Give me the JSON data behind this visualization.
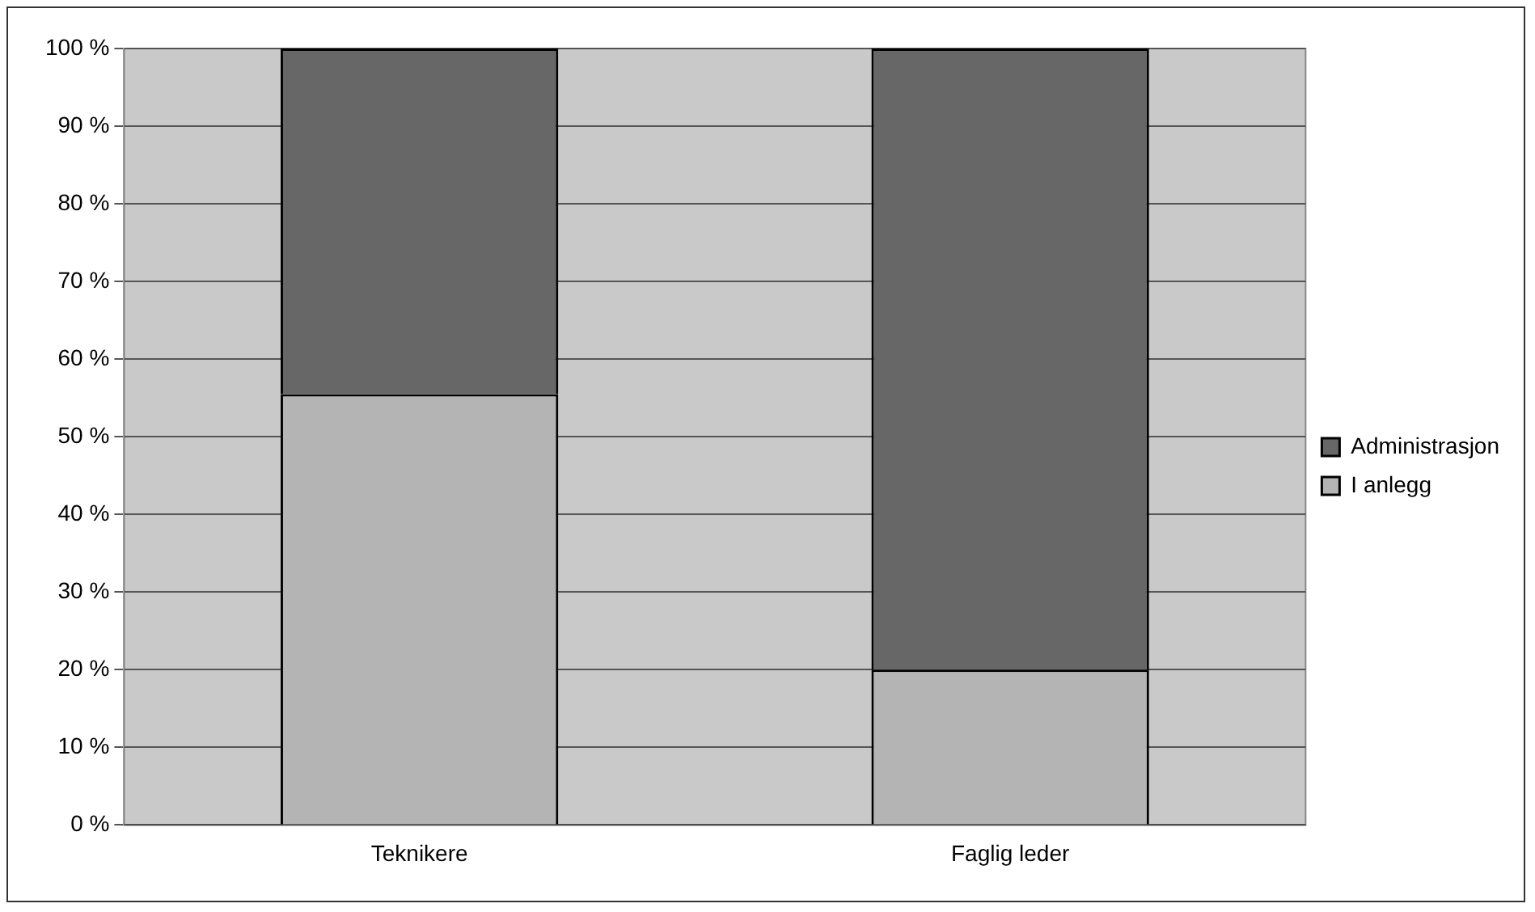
{
  "chart_data": {
    "type": "bar",
    "stacked": true,
    "categories": [
      "Teknikere",
      "Faglig leder"
    ],
    "series": [
      {
        "name": "I anlegg",
        "color": "#b4b4b4",
        "values": [
          55.5,
          20
        ]
      },
      {
        "name": "Administrasjon",
        "color": "#676767",
        "values": [
          44.5,
          80
        ]
      }
    ],
    "ylim": [
      0,
      100
    ],
    "yticks": [
      {
        "value": 0,
        "label": "0 %"
      },
      {
        "value": 10,
        "label": "10 %"
      },
      {
        "value": 20,
        "label": "20 %"
      },
      {
        "value": 30,
        "label": "30 %"
      },
      {
        "value": 40,
        "label": "40 %"
      },
      {
        "value": 50,
        "label": "50 %"
      },
      {
        "value": 60,
        "label": "60 %"
      },
      {
        "value": 70,
        "label": "70 %"
      },
      {
        "value": 80,
        "label": "80 %"
      },
      {
        "value": 90,
        "label": "90 %"
      },
      {
        "value": 100,
        "label": "100 %"
      }
    ],
    "grid": "y",
    "legend": "right"
  }
}
